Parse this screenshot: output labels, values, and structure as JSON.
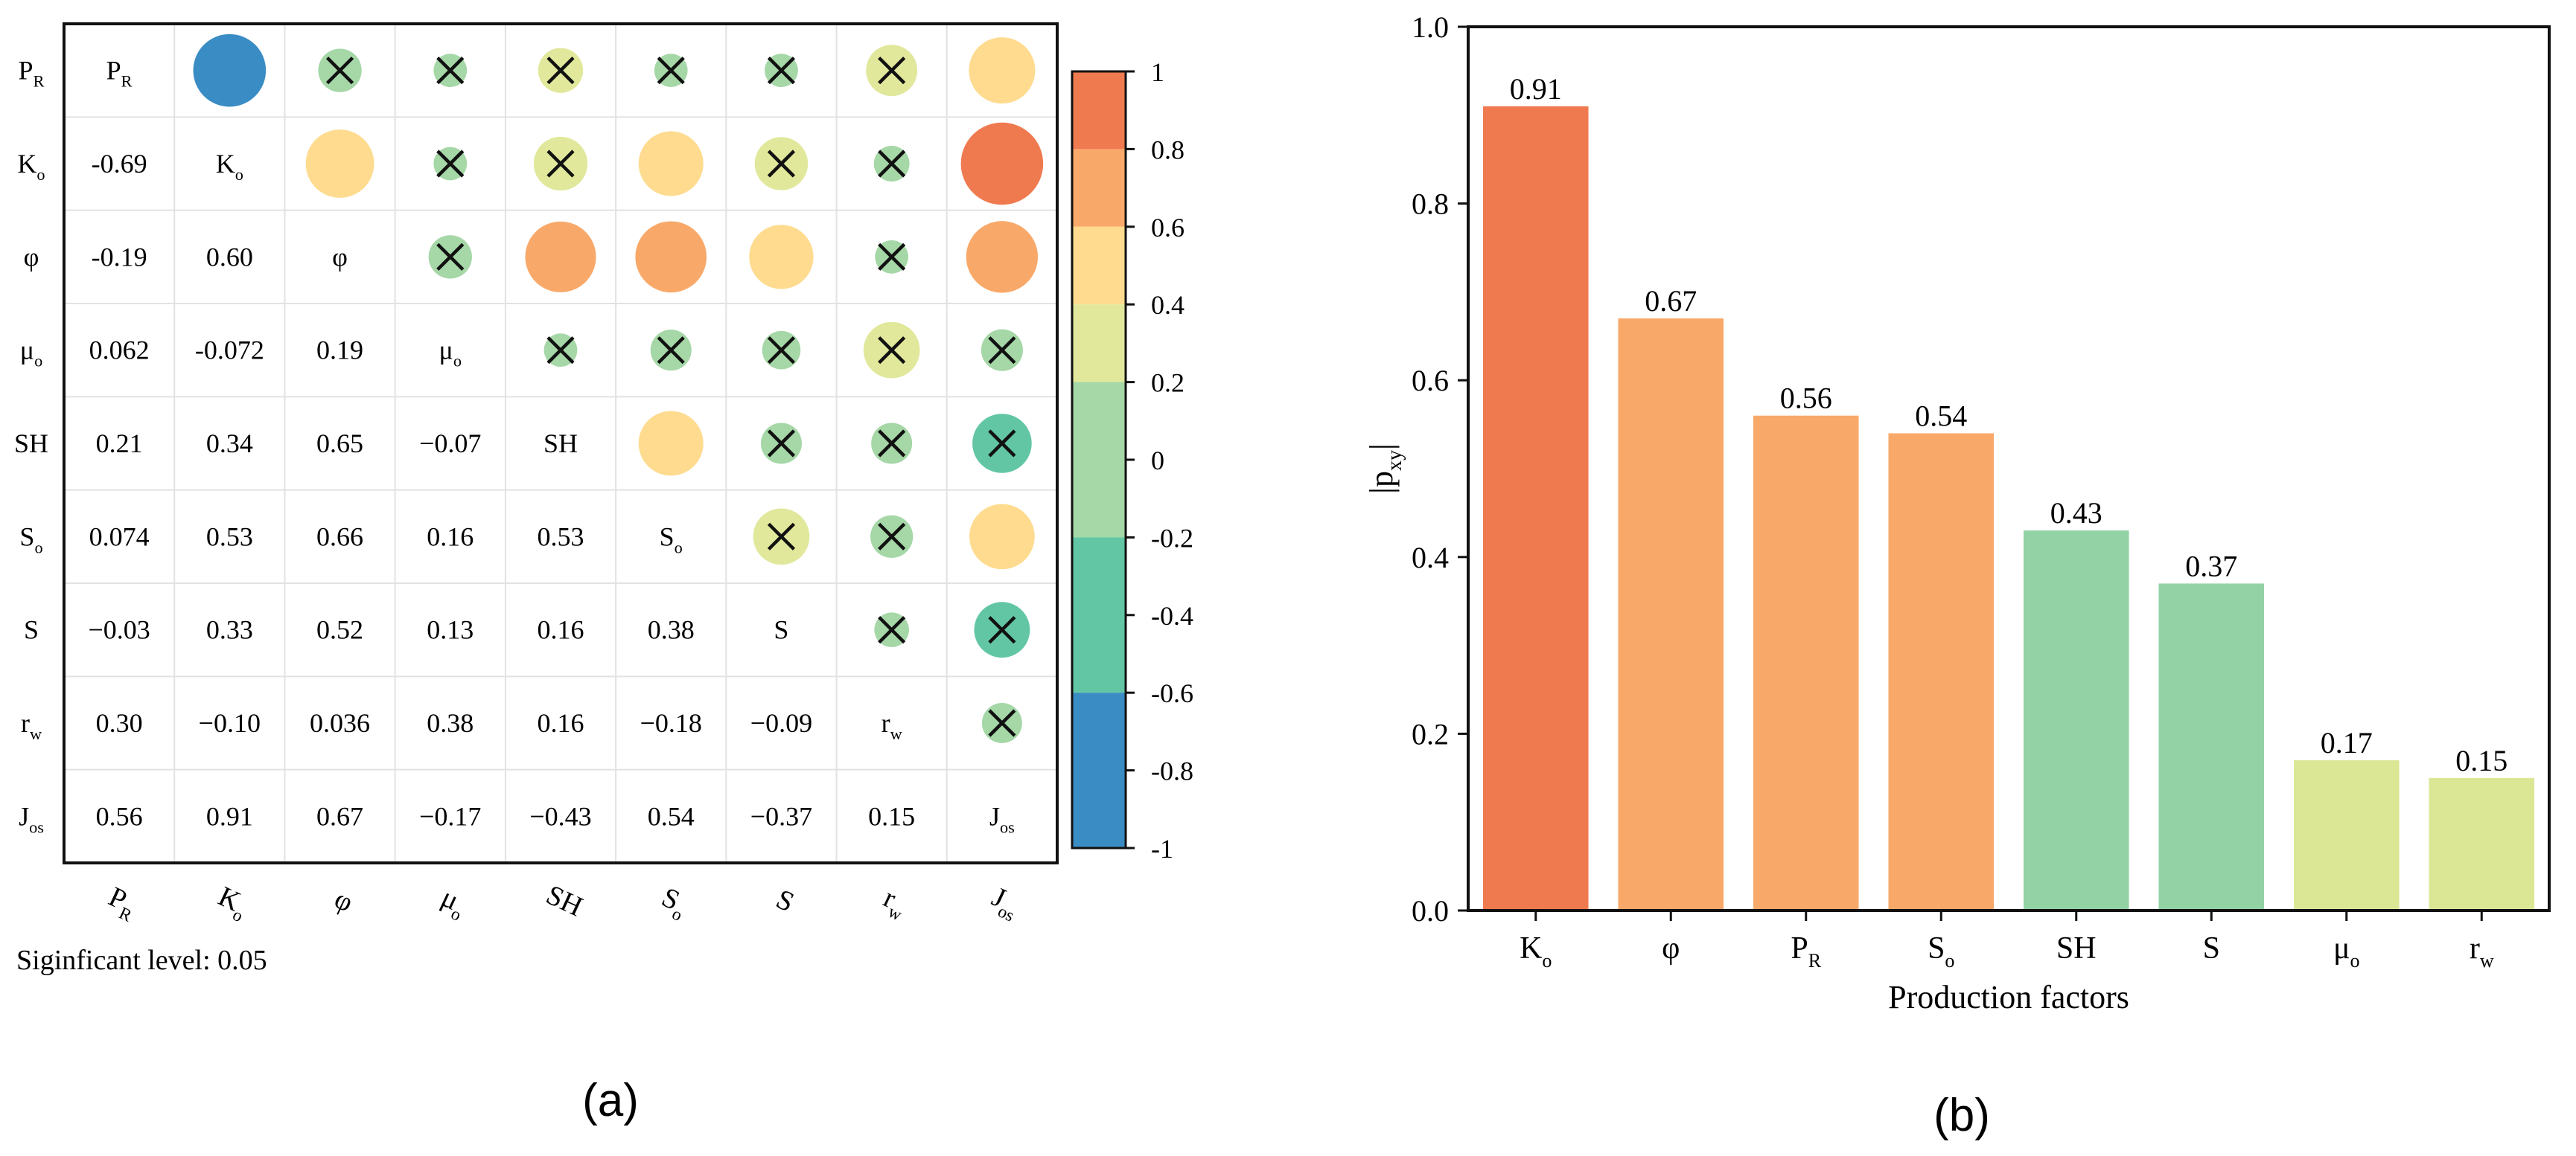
{
  "panel_a_label": "(a)",
  "panel_b_label": "(b)",
  "significance_note": "Siginficant level: 0.05",
  "chart_data": [
    {
      "type": "heatmap",
      "panel": "(a)",
      "variables": [
        {
          "base": "P",
          "sub": "R"
        },
        {
          "base": "K",
          "sub": "o"
        },
        {
          "base": "φ",
          "sub": ""
        },
        {
          "base": "μ",
          "sub": "o"
        },
        {
          "base": "SH",
          "sub": ""
        },
        {
          "base": "S",
          "sub": "o"
        },
        {
          "base": "S",
          "sub": ""
        },
        {
          "base": "r",
          "sub": "w"
        },
        {
          "base": "J",
          "sub": "os"
        }
      ],
      "lower_labels": [
        [],
        [
          "-0.69"
        ],
        [
          "-0.19",
          "0.60"
        ],
        [
          "0.062",
          "-0.072",
          "0.19"
        ],
        [
          "0.21",
          "0.34",
          "0.65",
          "−0.07"
        ],
        [
          "0.074",
          "0.53",
          "0.66",
          "0.16",
          "0.53"
        ],
        [
          "−0.03",
          "0.33",
          "0.52",
          "0.13",
          "0.16",
          "0.38"
        ],
        [
          "0.30",
          "−0.10",
          "0.036",
          "0.38",
          "0.16",
          "−0.18",
          "−0.09"
        ],
        [
          "0.56",
          "0.91",
          "0.67",
          "−0.17",
          "−0.43",
          "0.54",
          "−0.37",
          "0.15"
        ]
      ],
      "upper_cells": [
        {
          "row": 0,
          "col": 1,
          "value": -0.69,
          "significant": true
        },
        {
          "row": 0,
          "col": 2,
          "value": -0.19,
          "significant": false
        },
        {
          "row": 0,
          "col": 3,
          "value": 0.062,
          "significant": false
        },
        {
          "row": 0,
          "col": 4,
          "value": 0.21,
          "significant": false
        },
        {
          "row": 0,
          "col": 5,
          "value": 0.074,
          "significant": false
        },
        {
          "row": 0,
          "col": 6,
          "value": -0.03,
          "significant": false
        },
        {
          "row": 0,
          "col": 7,
          "value": 0.3,
          "significant": false
        },
        {
          "row": 0,
          "col": 8,
          "value": 0.56,
          "significant": true
        },
        {
          "row": 1,
          "col": 2,
          "value": 0.6,
          "significant": true
        },
        {
          "row": 1,
          "col": 3,
          "value": -0.072,
          "significant": false
        },
        {
          "row": 1,
          "col": 4,
          "value": 0.34,
          "significant": false
        },
        {
          "row": 1,
          "col": 5,
          "value": 0.53,
          "significant": true
        },
        {
          "row": 1,
          "col": 6,
          "value": 0.33,
          "significant": false
        },
        {
          "row": 1,
          "col": 7,
          "value": -0.1,
          "significant": false
        },
        {
          "row": 1,
          "col": 8,
          "value": 0.91,
          "significant": true
        },
        {
          "row": 2,
          "col": 3,
          "value": 0.19,
          "significant": false
        },
        {
          "row": 2,
          "col": 4,
          "value": 0.65,
          "significant": true
        },
        {
          "row": 2,
          "col": 5,
          "value": 0.66,
          "significant": true
        },
        {
          "row": 2,
          "col": 6,
          "value": 0.52,
          "significant": true
        },
        {
          "row": 2,
          "col": 7,
          "value": 0.036,
          "significant": false
        },
        {
          "row": 2,
          "col": 8,
          "value": 0.67,
          "significant": true
        },
        {
          "row": 3,
          "col": 4,
          "value": -0.07,
          "significant": false
        },
        {
          "row": 3,
          "col": 5,
          "value": 0.16,
          "significant": false
        },
        {
          "row": 3,
          "col": 6,
          "value": 0.13,
          "significant": false
        },
        {
          "row": 3,
          "col": 7,
          "value": 0.38,
          "significant": false
        },
        {
          "row": 3,
          "col": 8,
          "value": -0.17,
          "significant": false
        },
        {
          "row": 4,
          "col": 5,
          "value": 0.53,
          "significant": true
        },
        {
          "row": 4,
          "col": 6,
          "value": 0.16,
          "significant": false
        },
        {
          "row": 4,
          "col": 7,
          "value": 0.16,
          "significant": false
        },
        {
          "row": 4,
          "col": 8,
          "value": -0.43,
          "significant": false
        },
        {
          "row": 5,
          "col": 6,
          "value": 0.38,
          "significant": false
        },
        {
          "row": 5,
          "col": 7,
          "value": -0.18,
          "significant": false
        },
        {
          "row": 5,
          "col": 8,
          "value": 0.54,
          "significant": true
        },
        {
          "row": 6,
          "col": 7,
          "value": -0.09,
          "significant": false
        },
        {
          "row": 6,
          "col": 8,
          "value": -0.37,
          "significant": false
        },
        {
          "row": 7,
          "col": 8,
          "value": 0.15,
          "significant": false
        }
      ],
      "colorbar": {
        "range": [
          -1,
          1
        ],
        "ticks": [
          "1",
          "0.8",
          "0.6",
          "0.4",
          "0.2",
          "0",
          "-0.2",
          "-0.4",
          "-0.6",
          "-0.8",
          "-1"
        ],
        "bands": [
          "#f07a50",
          "#f8a96a",
          "#fedb8f",
          "#e1e89b",
          "#a5d7a7",
          "#62c6a4",
          "#3a8cc4"
        ]
      }
    },
    {
      "type": "bar",
      "panel": "(b)",
      "categories": [
        {
          "base": "K",
          "sub": "o"
        },
        {
          "base": "φ",
          "sub": ""
        },
        {
          "base": "P",
          "sub": "R"
        },
        {
          "base": "S",
          "sub": "o"
        },
        {
          "base": "SH",
          "sub": ""
        },
        {
          "base": "S",
          "sub": ""
        },
        {
          "base": "μ",
          "sub": "o"
        },
        {
          "base": "r",
          "sub": "w"
        }
      ],
      "values": [
        0.91,
        0.67,
        0.56,
        0.54,
        0.43,
        0.37,
        0.17,
        0.15
      ],
      "value_labels": [
        "0.91",
        "0.67",
        "0.56",
        "0.54",
        "0.43",
        "0.37",
        "0.17",
        "0.15"
      ],
      "bar_colors": [
        "#f07a50",
        "#f8a96a",
        "#f8a96a",
        "#f8a96a",
        "#93d2a5",
        "#93d2a5",
        "#dce795",
        "#dce795"
      ],
      "xlabel": "Production factors",
      "ylabel": {
        "base": "|p",
        "sub": "xy",
        "end": "|"
      },
      "ylim": [
        0,
        1.0
      ],
      "yticks": [
        "0.0",
        "0.2",
        "0.4",
        "0.6",
        "0.8",
        "1.0"
      ]
    }
  ]
}
